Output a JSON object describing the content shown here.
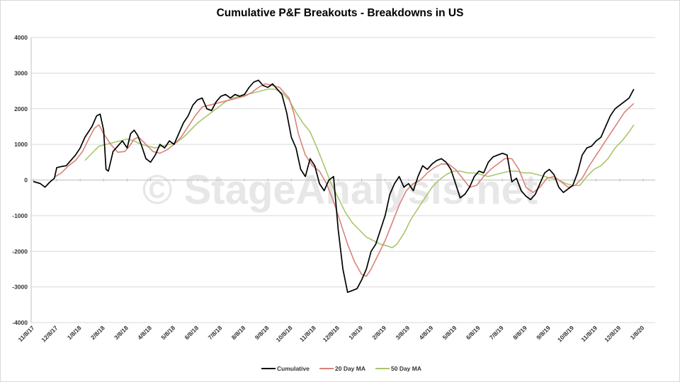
{
  "chart_data": {
    "type": "line",
    "title": "Cumulative P&F Breakouts - Breakdowns in US",
    "watermark": "© StageAnalysis.net",
    "y_ticks": [
      "4000",
      "3000",
      "2000",
      "1000",
      "0",
      "-1000",
      "-2000",
      "-3000",
      "-4000"
    ],
    "y_tick_values": [
      4000,
      3000,
      2000,
      1000,
      0,
      -1000,
      -2000,
      -3000,
      -4000
    ],
    "ylim": [
      -4000,
      4000
    ],
    "x_ticks": [
      "11/8/17",
      "12/8/17",
      "1/8/18",
      "2/8/18",
      "3/8/18",
      "4/8/18",
      "5/8/18",
      "6/8/18",
      "7/8/18",
      "8/8/18",
      "9/8/18",
      "10/8/18",
      "11/8/18",
      "12/8/18",
      "1/8/19",
      "2/8/19",
      "3/8/19",
      "4/8/19",
      "5/8/19",
      "6/8/19",
      "7/8/19",
      "8/8/19",
      "9/8/19",
      "10/8/19",
      "11/8/19",
      "12/8/19",
      "1/8/20"
    ],
    "grid": true,
    "legend": "bottom",
    "colors": {
      "Cumulative": "#000000",
      "20 Day MA": "#d9827a",
      "50 Day MA": "#a8c66c",
      "grid": "#d9d9d9"
    },
    "series": [
      {
        "name": "Cumulative",
        "points": [
          [
            0.0,
            -40
          ],
          [
            0.3,
            -100
          ],
          [
            0.5,
            -200
          ],
          [
            0.7,
            -60
          ],
          [
            0.9,
            50
          ],
          [
            1.0,
            350
          ],
          [
            1.2,
            380
          ],
          [
            1.4,
            400
          ],
          [
            1.6,
            550
          ],
          [
            1.8,
            700
          ],
          [
            2.0,
            900
          ],
          [
            2.2,
            1200
          ],
          [
            2.5,
            1500
          ],
          [
            2.7,
            1800
          ],
          [
            2.85,
            1850
          ],
          [
            3.0,
            1400
          ],
          [
            3.1,
            300
          ],
          [
            3.2,
            250
          ],
          [
            3.4,
            800
          ],
          [
            3.6,
            950
          ],
          [
            3.8,
            1100
          ],
          [
            4.0,
            900
          ],
          [
            4.15,
            1300
          ],
          [
            4.3,
            1400
          ],
          [
            4.45,
            1250
          ],
          [
            4.6,
            1000
          ],
          [
            4.8,
            600
          ],
          [
            5.0,
            500
          ],
          [
            5.2,
            700
          ],
          [
            5.4,
            1000
          ],
          [
            5.6,
            900
          ],
          [
            5.8,
            1100
          ],
          [
            6.0,
            1000
          ],
          [
            6.2,
            1300
          ],
          [
            6.4,
            1600
          ],
          [
            6.6,
            1800
          ],
          [
            6.8,
            2100
          ],
          [
            7.0,
            2250
          ],
          [
            7.2,
            2300
          ],
          [
            7.4,
            2000
          ],
          [
            7.6,
            1950
          ],
          [
            7.8,
            2200
          ],
          [
            8.0,
            2350
          ],
          [
            8.2,
            2400
          ],
          [
            8.4,
            2300
          ],
          [
            8.6,
            2400
          ],
          [
            8.8,
            2350
          ],
          [
            9.0,
            2400
          ],
          [
            9.2,
            2600
          ],
          [
            9.4,
            2750
          ],
          [
            9.6,
            2800
          ],
          [
            9.8,
            2650
          ],
          [
            10.0,
            2600
          ],
          [
            10.2,
            2700
          ],
          [
            10.4,
            2550
          ],
          [
            10.6,
            2400
          ],
          [
            10.8,
            1900
          ],
          [
            11.0,
            1200
          ],
          [
            11.2,
            900
          ],
          [
            11.4,
            300
          ],
          [
            11.6,
            100
          ],
          [
            11.8,
            600
          ],
          [
            12.0,
            400
          ],
          [
            12.2,
            -100
          ],
          [
            12.4,
            -300
          ],
          [
            12.6,
            0
          ],
          [
            12.8,
            100
          ],
          [
            13.0,
            -1400
          ],
          [
            13.2,
            -2500
          ],
          [
            13.4,
            -3150
          ],
          [
            13.6,
            -3100
          ],
          [
            13.8,
            -3050
          ],
          [
            14.0,
            -2800
          ],
          [
            14.2,
            -2500
          ],
          [
            14.4,
            -2000
          ],
          [
            14.6,
            -1800
          ],
          [
            14.8,
            -1400
          ],
          [
            15.0,
            -1000
          ],
          [
            15.2,
            -400
          ],
          [
            15.4,
            -100
          ],
          [
            15.6,
            100
          ],
          [
            15.8,
            -200
          ],
          [
            16.0,
            -100
          ],
          [
            16.2,
            -300
          ],
          [
            16.4,
            100
          ],
          [
            16.6,
            400
          ],
          [
            16.8,
            300
          ],
          [
            17.0,
            450
          ],
          [
            17.2,
            550
          ],
          [
            17.4,
            600
          ],
          [
            17.6,
            500
          ],
          [
            17.8,
            300
          ],
          [
            18.0,
            -100
          ],
          [
            18.2,
            -500
          ],
          [
            18.4,
            -400
          ],
          [
            18.6,
            -200
          ],
          [
            18.8,
            100
          ],
          [
            19.0,
            250
          ],
          [
            19.2,
            200
          ],
          [
            19.4,
            500
          ],
          [
            19.6,
            650
          ],
          [
            19.8,
            700
          ],
          [
            20.0,
            750
          ],
          [
            20.2,
            700
          ],
          [
            20.4,
            -50
          ],
          [
            20.6,
            50
          ],
          [
            20.8,
            -300
          ],
          [
            21.0,
            -450
          ],
          [
            21.2,
            -550
          ],
          [
            21.4,
            -400
          ],
          [
            21.6,
            -100
          ],
          [
            21.8,
            200
          ],
          [
            22.0,
            300
          ],
          [
            22.2,
            150
          ],
          [
            22.4,
            -200
          ],
          [
            22.6,
            -350
          ],
          [
            22.8,
            -250
          ],
          [
            23.0,
            -150
          ],
          [
            23.2,
            200
          ],
          [
            23.4,
            700
          ],
          [
            23.6,
            900
          ],
          [
            23.8,
            950
          ],
          [
            24.0,
            1100
          ],
          [
            24.2,
            1200
          ],
          [
            24.4,
            1500
          ],
          [
            24.6,
            1800
          ],
          [
            24.8,
            2000
          ],
          [
            25.0,
            2100
          ],
          [
            25.2,
            2200
          ],
          [
            25.4,
            2300
          ],
          [
            25.6,
            2550
          ]
        ]
      },
      {
        "name": "20 Day MA",
        "points": [
          [
            0.9,
            80
          ],
          [
            1.2,
            200
          ],
          [
            1.5,
            400
          ],
          [
            1.8,
            550
          ],
          [
            2.1,
            800
          ],
          [
            2.4,
            1200
          ],
          [
            2.6,
            1450
          ],
          [
            2.8,
            1550
          ],
          [
            3.0,
            1300
          ],
          [
            3.3,
            1000
          ],
          [
            3.6,
            780
          ],
          [
            3.9,
            800
          ],
          [
            4.1,
            950
          ],
          [
            4.3,
            1150
          ],
          [
            4.5,
            1200
          ],
          [
            4.8,
            1000
          ],
          [
            5.1,
            800
          ],
          [
            5.4,
            750
          ],
          [
            5.7,
            850
          ],
          [
            6.0,
            1000
          ],
          [
            6.3,
            1200
          ],
          [
            6.6,
            1500
          ],
          [
            6.9,
            1800
          ],
          [
            7.2,
            2050
          ],
          [
            7.5,
            2100
          ],
          [
            7.8,
            2150
          ],
          [
            8.1,
            2200
          ],
          [
            8.4,
            2250
          ],
          [
            8.7,
            2300
          ],
          [
            9.0,
            2350
          ],
          [
            9.3,
            2450
          ],
          [
            9.6,
            2600
          ],
          [
            9.9,
            2700
          ],
          [
            10.2,
            2650
          ],
          [
            10.5,
            2600
          ],
          [
            10.7,
            2450
          ],
          [
            10.9,
            2300
          ],
          [
            11.1,
            1900
          ],
          [
            11.3,
            1300
          ],
          [
            11.6,
            700
          ],
          [
            11.9,
            400
          ],
          [
            12.2,
            250
          ],
          [
            12.5,
            -100
          ],
          [
            12.8,
            -600
          ],
          [
            13.1,
            -1200
          ],
          [
            13.4,
            -1800
          ],
          [
            13.7,
            -2300
          ],
          [
            14.0,
            -2650
          ],
          [
            14.2,
            -2700
          ],
          [
            14.4,
            -2500
          ],
          [
            14.7,
            -2100
          ],
          [
            15.0,
            -1700
          ],
          [
            15.3,
            -1200
          ],
          [
            15.6,
            -700
          ],
          [
            15.9,
            -300
          ],
          [
            16.2,
            -100
          ],
          [
            16.5,
            0
          ],
          [
            16.8,
            200
          ],
          [
            17.1,
            350
          ],
          [
            17.4,
            450
          ],
          [
            17.7,
            450
          ],
          [
            18.0,
            300
          ],
          [
            18.3,
            50
          ],
          [
            18.6,
            -200
          ],
          [
            18.9,
            -150
          ],
          [
            19.2,
            100
          ],
          [
            19.5,
            300
          ],
          [
            19.8,
            450
          ],
          [
            20.1,
            600
          ],
          [
            20.4,
            600
          ],
          [
            20.7,
            300
          ],
          [
            21.0,
            -200
          ],
          [
            21.3,
            -350
          ],
          [
            21.6,
            -200
          ],
          [
            21.9,
            50
          ],
          [
            22.2,
            100
          ],
          [
            22.5,
            -50
          ],
          [
            22.8,
            -200
          ],
          [
            23.1,
            -150
          ],
          [
            23.4,
            50
          ],
          [
            23.7,
            400
          ],
          [
            24.0,
            700
          ],
          [
            24.3,
            1000
          ],
          [
            24.6,
            1300
          ],
          [
            24.9,
            1600
          ],
          [
            25.2,
            1900
          ],
          [
            25.6,
            2150
          ]
        ]
      },
      {
        "name": "50 Day MA",
        "points": [
          [
            2.2,
            550
          ],
          [
            2.5,
            750
          ],
          [
            2.8,
            950
          ],
          [
            3.1,
            1000
          ],
          [
            3.4,
            1050
          ],
          [
            3.7,
            1100
          ],
          [
            4.0,
            1150
          ],
          [
            4.3,
            1100
          ],
          [
            4.6,
            1000
          ],
          [
            4.9,
            950
          ],
          [
            5.2,
            900
          ],
          [
            5.5,
            950
          ],
          [
            5.8,
            1000
          ],
          [
            6.1,
            1050
          ],
          [
            6.4,
            1200
          ],
          [
            6.7,
            1400
          ],
          [
            7.0,
            1600
          ],
          [
            7.3,
            1750
          ],
          [
            7.6,
            1900
          ],
          [
            7.9,
            2050
          ],
          [
            8.2,
            2200
          ],
          [
            8.5,
            2300
          ],
          [
            8.8,
            2350
          ],
          [
            9.1,
            2400
          ],
          [
            9.4,
            2450
          ],
          [
            9.7,
            2500
          ],
          [
            10.0,
            2550
          ],
          [
            10.3,
            2550
          ],
          [
            10.6,
            2450
          ],
          [
            10.9,
            2250
          ],
          [
            11.2,
            1900
          ],
          [
            11.5,
            1600
          ],
          [
            11.8,
            1350
          ],
          [
            12.1,
            900
          ],
          [
            12.4,
            400
          ],
          [
            12.7,
            -100
          ],
          [
            13.0,
            -500
          ],
          [
            13.3,
            -900
          ],
          [
            13.6,
            -1200
          ],
          [
            13.9,
            -1400
          ],
          [
            14.2,
            -1600
          ],
          [
            14.5,
            -1700
          ],
          [
            14.8,
            -1800
          ],
          [
            15.1,
            -1850
          ],
          [
            15.3,
            -1900
          ],
          [
            15.5,
            -1800
          ],
          [
            15.8,
            -1500
          ],
          [
            16.1,
            -1100
          ],
          [
            16.4,
            -800
          ],
          [
            16.7,
            -500
          ],
          [
            17.0,
            -200
          ],
          [
            17.3,
            0
          ],
          [
            17.6,
            150
          ],
          [
            17.9,
            250
          ],
          [
            18.2,
            250
          ],
          [
            18.5,
            200
          ],
          [
            18.8,
            200
          ],
          [
            19.1,
            150
          ],
          [
            19.4,
            100
          ],
          [
            19.7,
            150
          ],
          [
            20.0,
            200
          ],
          [
            20.3,
            250
          ],
          [
            20.6,
            250
          ],
          [
            20.9,
            200
          ],
          [
            21.2,
            200
          ],
          [
            21.5,
            150
          ],
          [
            21.8,
            100
          ],
          [
            22.1,
            50
          ],
          [
            22.4,
            0
          ],
          [
            22.7,
            -100
          ],
          [
            23.0,
            -150
          ],
          [
            23.3,
            -150
          ],
          [
            23.6,
            100
          ],
          [
            23.9,
            300
          ],
          [
            24.2,
            400
          ],
          [
            24.5,
            600
          ],
          [
            24.8,
            900
          ],
          [
            25.1,
            1100
          ],
          [
            25.4,
            1350
          ],
          [
            25.6,
            1550
          ]
        ]
      }
    ]
  }
}
